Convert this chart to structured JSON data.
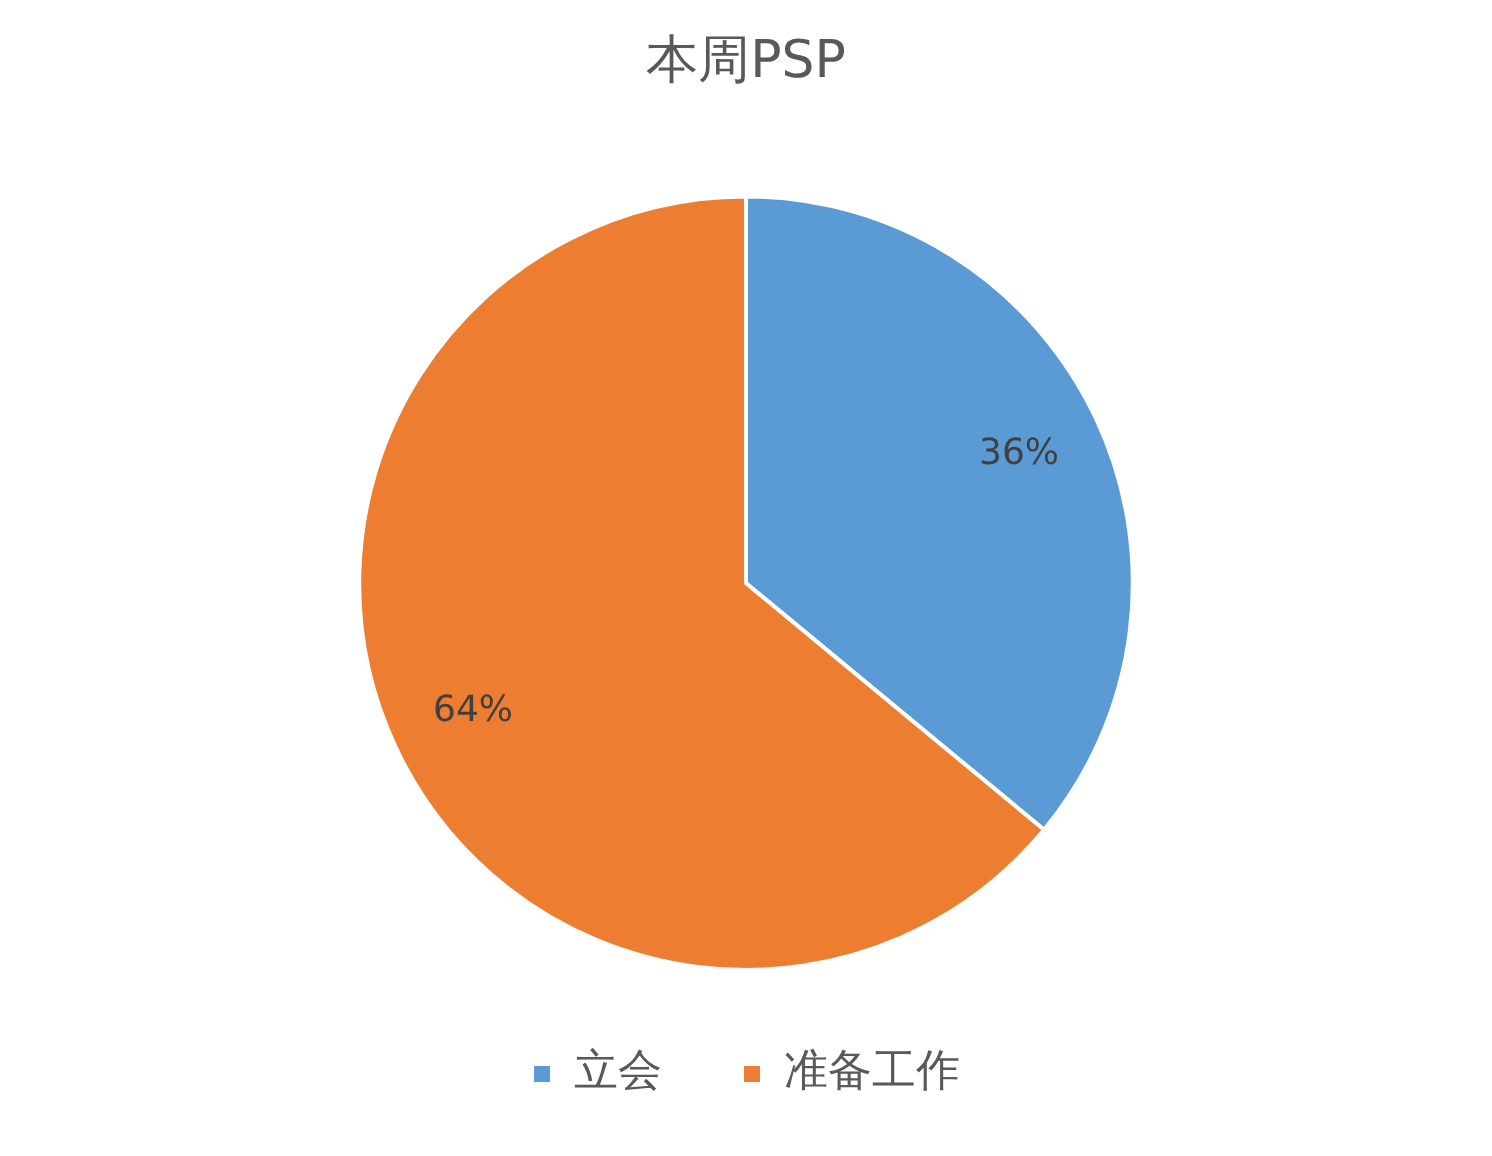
{
  "chart_data": {
    "type": "pie",
    "title": "本周PSP",
    "categories": [
      "立会",
      "准备工作"
    ],
    "values": [
      36,
      64
    ],
    "colors": [
      "#5b9bd5",
      "#ed7d31"
    ],
    "value_labels": [
      "36%",
      "64%"
    ],
    "legend": "bottom"
  }
}
